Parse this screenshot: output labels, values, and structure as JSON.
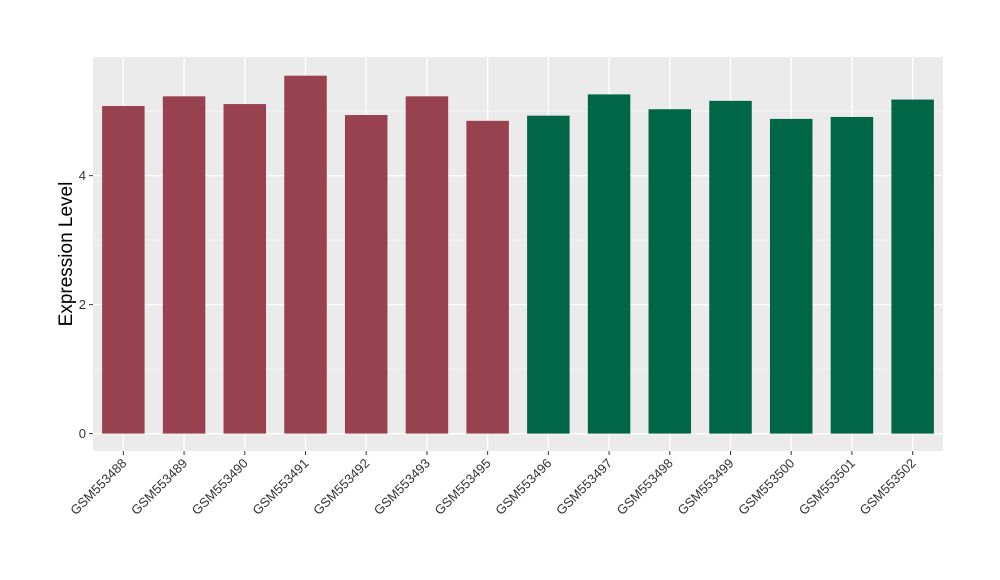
{
  "chart_data": {
    "type": "bar",
    "title": "",
    "xlabel": "",
    "ylabel": "Expression Level",
    "categories": [
      "GSM553488",
      "GSM553489",
      "GSM553490",
      "GSM553491",
      "GSM553492",
      "GSM553493",
      "GSM553495",
      "GSM553496",
      "GSM553497",
      "GSM553498",
      "GSM553499",
      "GSM553500",
      "GSM553501",
      "GSM553502"
    ],
    "values": [
      5.08,
      5.23,
      5.11,
      5.55,
      4.94,
      5.23,
      4.85,
      4.93,
      5.26,
      5.03,
      5.16,
      4.88,
      4.91,
      5.18
    ],
    "group_index": [
      0,
      0,
      0,
      0,
      0,
      0,
      0,
      1,
      1,
      1,
      1,
      1,
      1,
      1
    ],
    "group_colors": [
      "#99424f",
      "#006645"
    ],
    "ylim": [
      -0.27,
      5.84
    ],
    "yticks": [
      0,
      2,
      4
    ],
    "grid": true,
    "legend": "none"
  }
}
